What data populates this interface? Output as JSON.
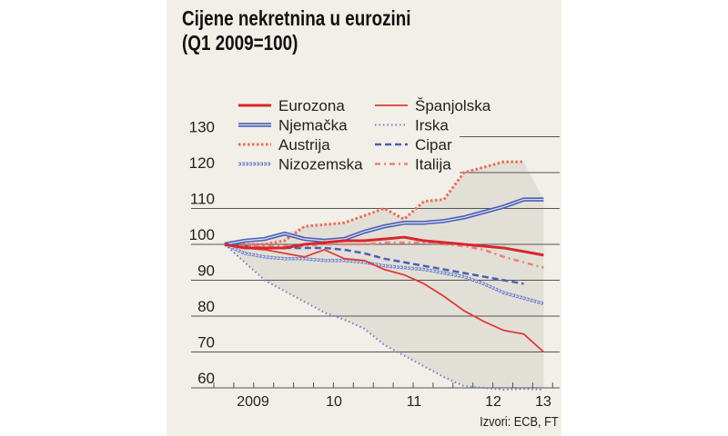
{
  "chart_data": {
    "type": "line",
    "title": "Cijene nekretnina u eurozini",
    "subtitle": "(Q1 2009=100)",
    "source": "Izvori: ECB, FT",
    "x": [
      "2009Q1",
      "2009Q2",
      "2009Q3",
      "2009Q4",
      "2010Q1",
      "2010Q2",
      "2010Q3",
      "2010Q4",
      "2011Q1",
      "2011Q2",
      "2011Q3",
      "2011Q4",
      "2012Q1",
      "2012Q2",
      "2012Q3",
      "2012Q4",
      "2013Q1"
    ],
    "x_tick_labels": [
      "2009",
      "10",
      "11",
      "12",
      "13"
    ],
    "y_ticks": [
      60,
      70,
      80,
      90,
      100,
      110,
      120,
      130
    ],
    "ylim": [
      60,
      130
    ],
    "grid": true,
    "legend_position": "top",
    "series": [
      {
        "name": "Eurozona",
        "color": "#d8262e",
        "style": "solid-thick",
        "values": [
          100,
          99,
          99,
          99,
          100,
          100.5,
          101,
          101,
          101.5,
          102,
          101,
          100.5,
          100,
          99.5,
          99,
          98,
          97
        ]
      },
      {
        "name": "Njemačka",
        "color": "#4a5fb5",
        "style": "double",
        "values": [
          100,
          101,
          101.5,
          103,
          101.5,
          101,
          101.5,
          103.5,
          105,
          106,
          106,
          106.5,
          107.5,
          109,
          110.5,
          112.5,
          112.5
        ]
      },
      {
        "name": "Austrija",
        "color": "#ee6a55",
        "style": "dotted",
        "values": [
          100,
          100,
          100,
          101,
          105,
          105.5,
          106,
          108,
          110,
          107,
          112,
          112.5,
          120,
          121.5,
          123,
          123,
          null
        ]
      },
      {
        "name": "Nizozemska",
        "color": "#6a7cc8",
        "style": "circles",
        "values": [
          100,
          97.5,
          96.5,
          96,
          96,
          95.5,
          95.5,
          95,
          94,
          93.5,
          93,
          92,
          91,
          89,
          86.5,
          85,
          83.5
        ]
      },
      {
        "name": "Španjolska",
        "color": "#e03a3a",
        "style": "solid-thin",
        "values": [
          100,
          99,
          98.5,
          97.5,
          96.5,
          98.5,
          96,
          95.5,
          93,
          91.5,
          89,
          85.5,
          81.5,
          78.5,
          76,
          75,
          70
        ]
      },
      {
        "name": "Irska",
        "color": "#6a7cc8",
        "style": "fine-dotted",
        "values": [
          100,
          95,
          90,
          87,
          84,
          81,
          79,
          76.5,
          72,
          69,
          66,
          63,
          60.5,
          60,
          59.5,
          59.7,
          59.5
        ]
      },
      {
        "name": "Cipar",
        "color": "#4a5fb5",
        "style": "dashed",
        "values": [
          100,
          99.5,
          99,
          99,
          99,
          99,
          98.5,
          97.5,
          96,
          95,
          94,
          93,
          92,
          91,
          90,
          89,
          null
        ]
      },
      {
        "name": "Italija",
        "color": "#f08070",
        "style": "dash-dot",
        "values": [
          100,
          99.5,
          99.5,
          99.5,
          99.5,
          100,
          100,
          100,
          100.5,
          100.5,
          100.5,
          100,
          99.5,
          98.5,
          96.5,
          95,
          93.5
        ]
      }
    ]
  }
}
